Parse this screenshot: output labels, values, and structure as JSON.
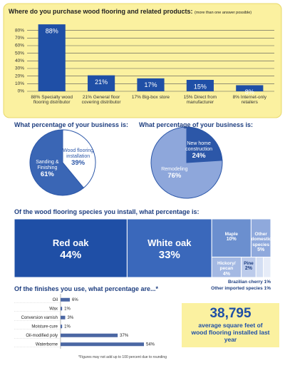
{
  "chart_data": [
    {
      "type": "bar",
      "title": "Where do you purchase wood flooring and related products:",
      "subtitle": "(more than one answer possible)",
      "categories": [
        "88% Specialty wood flooring distributor",
        "21% General floor covering distributor",
        "17% Big-box store",
        "15% Direct from manufacturer",
        "8% Internet-only retailers"
      ],
      "values": [
        88,
        21,
        17,
        15,
        8
      ],
      "value_labels": [
        "88%",
        "21%",
        "17%",
        "15%",
        "8%"
      ],
      "color": "#1f4fa6",
      "ylim": [
        0,
        90
      ],
      "yticks": [
        {
          "value": 0,
          "label": "0%"
        },
        {
          "value": 10,
          "label": "10%"
        },
        {
          "value": 20,
          "label": "20%"
        },
        {
          "value": 30,
          "label": "30%"
        },
        {
          "value": 40,
          "label": "40%"
        },
        {
          "value": 50,
          "label": "50%"
        },
        {
          "value": 60,
          "label": "60%"
        },
        {
          "value": 70,
          "label": "70%"
        },
        {
          "value": 80,
          "label": "80%"
        }
      ],
      "grid": true
    },
    {
      "type": "pie",
      "title": "What percentage of your business is:",
      "categories": [
        "Sanding & Finishing",
        "Wood flooring installation"
      ],
      "values": [
        61,
        39
      ],
      "value_labels": [
        "61%",
        "39%"
      ],
      "colors": [
        "#3a66b5",
        "#ffffff"
      ]
    },
    {
      "type": "pie",
      "title": "What percentage of your business is:",
      "categories": [
        "New home construction",
        "Remodeling"
      ],
      "values": [
        24,
        76
      ],
      "value_labels": [
        "24%",
        "76%"
      ],
      "colors": [
        "#2c57a8",
        "#8ea7db"
      ]
    },
    {
      "type": "treemap",
      "title": "Of the wood flooring species you install, what percentage is:",
      "categories": [
        "Red oak",
        "White oak",
        "Maple",
        "Other domestic species",
        "Hickory/ pecan",
        "Pine",
        "Brazilian cherry",
        "Other imported species"
      ],
      "values": [
        44,
        33,
        10,
        5,
        4,
        2,
        1,
        1
      ],
      "value_labels": [
        "44%",
        "33%",
        "10%",
        "5%",
        "4%",
        "2%",
        "1%",
        "1%"
      ],
      "colors": [
        "#1f4fa6",
        "#3a68bb",
        "#6b8fcf",
        "#8fa9dc",
        "#a4b9e3",
        "#bccbeb",
        "#d3def3",
        "#e6ecf8"
      ]
    },
    {
      "type": "hbar",
      "title": "Of the finishes you use, what percentage are...*",
      "categories": [
        "Oil",
        "Wax",
        "Conversion varnish",
        "Moisture-cure",
        "Oil-modified poly",
        "Waterborne"
      ],
      "values": [
        6,
        1,
        3,
        1,
        37,
        54
      ],
      "value_labels": [
        "6%",
        "1%",
        "3%",
        "1%",
        "37%",
        "54%"
      ],
      "color": "#4b67a3",
      "xlim": [
        0,
        60
      ],
      "note": "*Figures may not add up to 100 percent due to rounding"
    }
  ],
  "callout": {
    "value": "38,795",
    "text": "average square feet of wood flooring installed last year"
  }
}
